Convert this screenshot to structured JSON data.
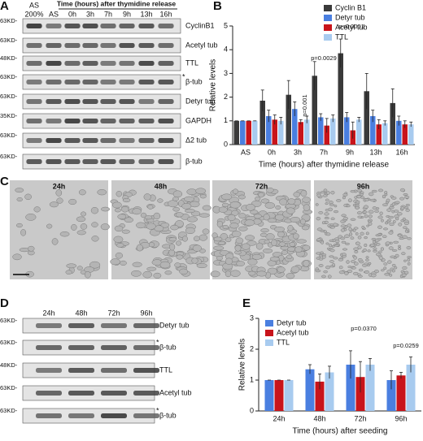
{
  "panel_a": {
    "letter": "A",
    "first_lane_top": "AS",
    "header": "Time (hours) after thymidine release",
    "lanes": [
      "200%",
      "AS",
      "0h",
      "3h",
      "7h",
      "9h",
      "13h",
      "16h"
    ],
    "rows": [
      {
        "marker": "63KD-",
        "label": "CyclinB1"
      },
      {
        "marker": "63KD-",
        "label": "Acetyl tub"
      },
      {
        "marker": "48KD-",
        "label": "TTL"
      },
      {
        "marker": "63KD-",
        "label": "β-tub",
        "asterisk": "*"
      },
      {
        "marker": "63KD-",
        "label": "Detyr tub"
      },
      {
        "marker": "35KD-",
        "label": "GAPDH"
      },
      {
        "marker": "63KD-",
        "label": "Δ2 tub"
      },
      {
        "marker": "63KD-",
        "label": "β-tub"
      }
    ]
  },
  "panel_c": {
    "letter": "C",
    "images": [
      "24h",
      "48h",
      "72h",
      "96h"
    ]
  },
  "panel_d": {
    "letter": "D",
    "lanes": [
      "24h",
      "48h",
      "72h",
      "96h"
    ],
    "rows": [
      {
        "marker": "63KD-",
        "label": "Detyr tub"
      },
      {
        "marker": "63KD-",
        "label": "β-tub",
        "asterisk": "*"
      },
      {
        "marker": "48KD-",
        "label": "TTL"
      },
      {
        "marker": "63KD-",
        "label": "Acetyl tub"
      },
      {
        "marker": "63KD-",
        "label": "β-tub",
        "asterisk": "*"
      }
    ]
  },
  "chart_data": [
    {
      "type": "bar",
      "panel_label": "B",
      "y_label": "Relative levels",
      "x_label": "Time (hours) after thymidine release",
      "categories": [
        "AS",
        "0h",
        "3h",
        "7h",
        "9h",
        "13h",
        "16h"
      ],
      "ylim": [
        0,
        5
      ],
      "yticks": [
        0,
        1,
        2,
        3,
        4,
        5
      ],
      "legend": "top-right",
      "series": [
        {
          "name": "Cyclin B1",
          "color": "#3a3a3a",
          "values": [
            1,
            1.85,
            2.1,
            2.9,
            3.85,
            2.25,
            1.75
          ],
          "errors": [
            0,
            0.45,
            0.6,
            0.6,
            0.6,
            0.75,
            0.6
          ]
        },
        {
          "name": "Detyr tub",
          "color": "#4a7fe0",
          "values": [
            1,
            1.2,
            1.5,
            1.15,
            1.15,
            1.2,
            1.0
          ],
          "errors": [
            0,
            0.25,
            0.3,
            0.15,
            0.2,
            0.25,
            0.2
          ]
        },
        {
          "name": "Acetyl tub",
          "color": "#c8141b",
          "values": [
            1,
            1.05,
            0.95,
            0.8,
            0.6,
            0.85,
            0.85
          ],
          "errors": [
            0,
            0.2,
            0.1,
            0.3,
            0.35,
            0.2,
            0.15
          ]
        },
        {
          "name": "TTL",
          "color": "#a8cbef",
          "values": [
            1,
            1.0,
            1.05,
            1.1,
            1.05,
            0.9,
            0.85
          ],
          "errors": [
            0,
            0.15,
            0.15,
            0.15,
            0.1,
            0.1,
            0.1
          ]
        }
      ],
      "annotations": [
        "p=0.001",
        "p=0.0029",
        "p<0.0001"
      ]
    },
    {
      "type": "bar",
      "panel_label": "E",
      "y_label": "Relative levels",
      "x_label": "Time (hours) after seeding",
      "categories": [
        "24h",
        "48h",
        "72h",
        "96h"
      ],
      "ylim": [
        0,
        3
      ],
      "yticks": [
        0,
        1,
        2,
        3
      ],
      "legend": "top-left",
      "series": [
        {
          "name": "Detyr tub",
          "color": "#4a7fe0",
          "values": [
            1,
            1.35,
            1.5,
            1.0
          ],
          "errors": [
            0,
            0.15,
            0.45,
            0.3
          ]
        },
        {
          "name": "Acetyl tub",
          "color": "#c8141b",
          "values": [
            1,
            0.95,
            1.1,
            1.15
          ],
          "errors": [
            0,
            0.25,
            0.5,
            0.1
          ]
        },
        {
          "name": "TTL",
          "color": "#a8cbef",
          "values": [
            1,
            1.25,
            1.5,
            1.5
          ],
          "errors": [
            0,
            0.2,
            0.2,
            0.25
          ]
        }
      ],
      "annotations": [
        "p=0.0370",
        "p=0.0259"
      ]
    }
  ]
}
